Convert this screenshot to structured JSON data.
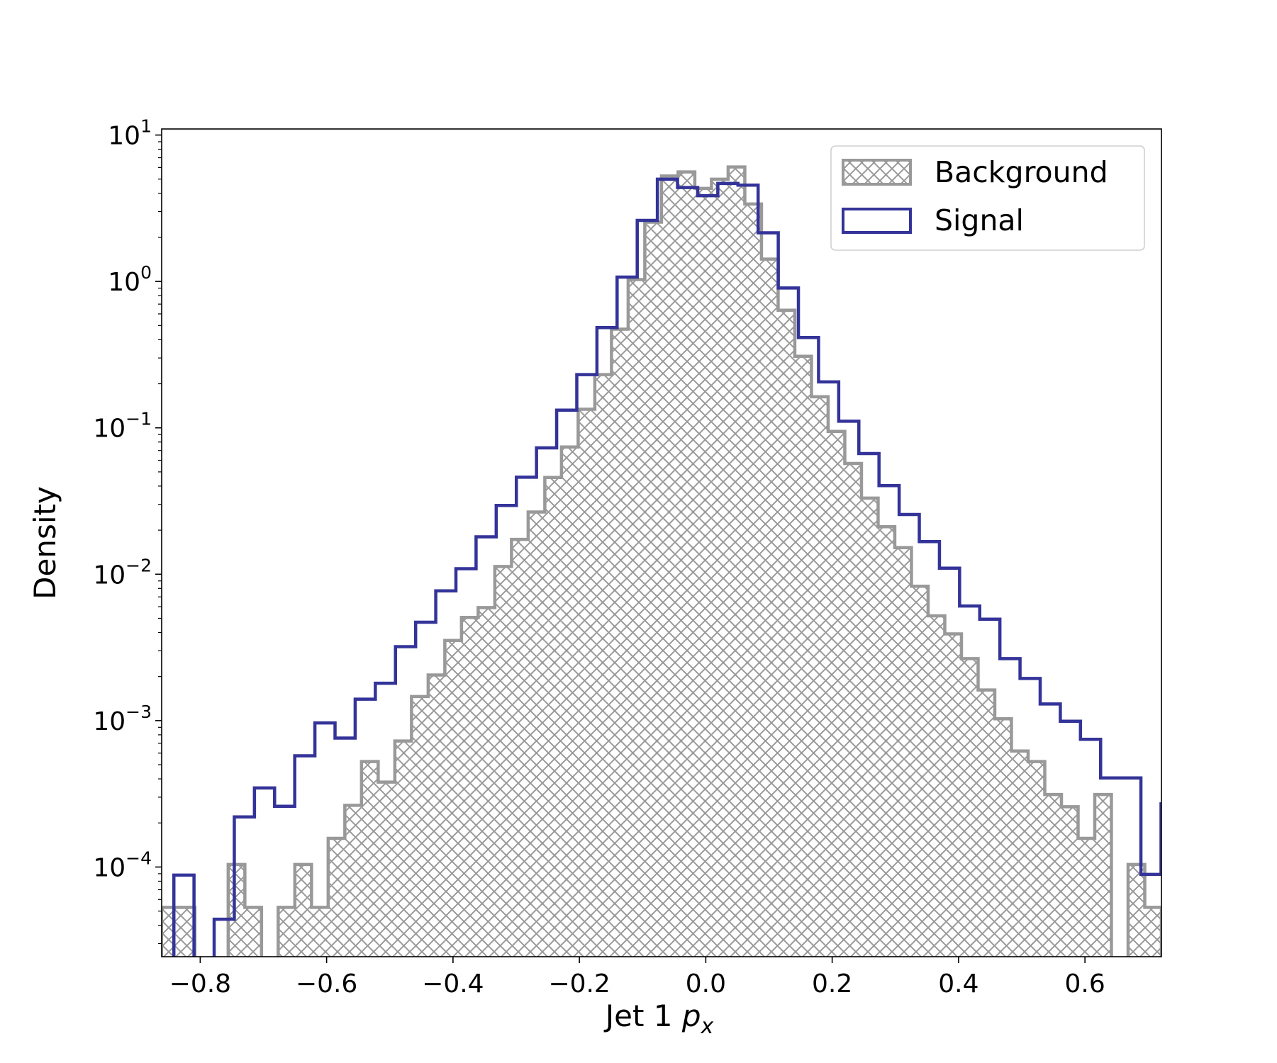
{
  "chart_data": {
    "type": "histogram",
    "title": "",
    "xlabel": "Jet 1 p_x",
    "xlabel_main": "Jet 1 ",
    "xlabel_math": "p",
    "xlabel_sub": "x",
    "ylabel": "Density",
    "yscale": "log",
    "xlim": [
      -0.861,
      0.721
    ],
    "ylim": [
      2.44e-05,
      11.0
    ],
    "x_ticks": [
      -0.8,
      -0.6,
      -0.4,
      -0.2,
      0.0,
      0.2,
      0.4,
      0.6
    ],
    "x_tick_labels": [
      "−0.8",
      "−0.6",
      "−0.4",
      "−0.2",
      "0.0",
      "0.2",
      "0.4",
      "0.6"
    ],
    "y_ticks": [
      0.0001,
      0.001,
      0.01,
      0.1,
      1,
      10
    ],
    "y_tick_labels": [
      {
        "base": "10",
        "exp": "−4"
      },
      {
        "base": "10",
        "exp": "−3"
      },
      {
        "base": "10",
        "exp": "−2"
      },
      {
        "base": "10",
        "exp": "−1"
      },
      {
        "base": "10",
        "exp": "0"
      },
      {
        "base": "10",
        "exp": "1"
      }
    ],
    "grid": false,
    "legend_position": "top-right",
    "series": [
      {
        "name": "Background",
        "style": "hatched-step-filled",
        "color": "#999999",
        "bin_start": -0.8612,
        "bin_width": 0.02637,
        "values": [
          5.3e-05,
          5.3e-05,
          0,
          0,
          0.000104,
          5.3e-05,
          0,
          5.3e-05,
          0.000104,
          5.3e-05,
          0.000157,
          0.000264,
          0.000525,
          0.00038,
          0.000726,
          0.00146,
          0.00205,
          0.00353,
          0.00507,
          0.00592,
          0.0113,
          0.0173,
          0.0266,
          0.0458,
          0.074,
          0.134,
          0.231,
          0.472,
          1.03,
          2.54,
          5.25,
          5.6,
          4.32,
          4.99,
          6.05,
          3.38,
          1.42,
          0.636,
          0.308,
          0.163,
          0.0946,
          0.0571,
          0.0331,
          0.0211,
          0.0152,
          0.00828,
          0.0052,
          0.00391,
          0.00265,
          0.00162,
          0.00103,
          0.00062,
          0.000525,
          0.000313,
          0.000258,
          0.000157,
          0.000313,
          0,
          0.000104,
          5.3e-05
        ]
      },
      {
        "name": "Signal",
        "style": "step",
        "color": "#333399",
        "bin_start": -0.8417,
        "bin_width": 0.03188,
        "values": [
          8.8e-05,
          0,
          4.4e-05,
          0.00022,
          0.000347,
          0.00026,
          0.000575,
          0.000965,
          0.00076,
          0.0014,
          0.0018,
          0.0032,
          0.0047,
          0.0077,
          0.0109,
          0.018,
          0.0295,
          0.046,
          0.073,
          0.132,
          0.231,
          0.484,
          1.07,
          2.61,
          4.99,
          4.38,
          3.85,
          4.67,
          4.55,
          2.15,
          0.902,
          0.414,
          0.206,
          0.111,
          0.0667,
          0.0403,
          0.0256,
          0.0167,
          0.011,
          0.00607,
          0.00493,
          0.00265,
          0.00194,
          0.0013,
          0.00099,
          0.000745,
          0.000406,
          0.000406,
          8.9e-05,
          0.00027
        ]
      }
    ]
  }
}
